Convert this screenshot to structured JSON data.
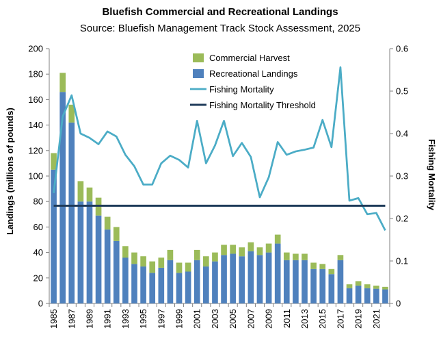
{
  "chart_data": {
    "type": "bar",
    "title": "Bluefish Commercial and Recreational Landings",
    "subtitle": "Source: Bluefish Management Track Stock Assessment, 2025",
    "ylabel": "Landings (millions of pounds)",
    "y2label": "Fishing Mortality",
    "ylim": [
      0,
      200
    ],
    "y2lim": [
      0,
      0.6
    ],
    "yticks": [
      "0",
      "20",
      "40",
      "60",
      "80",
      "100",
      "120",
      "140",
      "160",
      "180",
      "200"
    ],
    "y2ticks": [
      "0",
      "0.1",
      "0.2",
      "0.3",
      "0.4",
      "0.5",
      "0.6"
    ],
    "stacked": true,
    "legend_position": "top-center",
    "grid": false,
    "categories": [
      "1985",
      "1986",
      "1987",
      "1988",
      "1989",
      "1990",
      "1991",
      "1992",
      "1993",
      "1994",
      "1995",
      "1996",
      "1997",
      "1998",
      "1999",
      "2000",
      "2001",
      "2002",
      "2003",
      "2004",
      "2005",
      "2006",
      "2007",
      "2008",
      "2009",
      "2010",
      "2011",
      "2012",
      "2013",
      "2014",
      "2015",
      "2016",
      "2017",
      "2018",
      "2019",
      "2020",
      "2021",
      "2022"
    ],
    "x_tick_labels": [
      "1985",
      "1987",
      "1989",
      "1991",
      "1993",
      "1995",
      "1997",
      "1999",
      "2001",
      "2003",
      "2005",
      "2007",
      "2009",
      "2011",
      "2013",
      "2015",
      "2017",
      "2019",
      "2021"
    ],
    "series": [
      {
        "name": "Recreational Landings",
        "kind": "bar",
        "axis": "left",
        "color": "#4f81bd",
        "values": [
          105,
          166,
          142,
          80,
          80,
          69,
          58,
          49,
          36,
          31,
          29,
          24,
          28,
          34,
          24,
          25,
          34,
          29,
          33,
          38,
          39,
          37,
          41,
          38,
          40,
          47,
          34,
          34,
          34,
          27,
          27,
          23,
          34,
          12,
          14,
          12,
          11.5,
          11
        ]
      },
      {
        "name": "Commercial Harvest",
        "kind": "bar",
        "axis": "left",
        "color": "#9bbb59",
        "values": [
          13,
          15,
          14,
          16,
          11,
          14,
          10,
          11,
          9,
          9,
          8,
          9,
          8,
          8,
          8,
          7,
          8,
          8,
          7,
          8,
          7,
          7,
          7,
          6,
          7,
          7,
          6,
          5,
          5,
          5,
          4,
          4,
          4,
          3,
          3.5,
          3,
          2.5,
          2
        ]
      },
      {
        "name": "Fishing Mortality",
        "kind": "line",
        "axis": "right",
        "color": "#4bacc6",
        "values": [
          0.26,
          0.44,
          0.49,
          0.4,
          0.39,
          0.375,
          0.405,
          0.393,
          0.35,
          0.323,
          0.28,
          0.28,
          0.33,
          0.348,
          0.338,
          0.32,
          0.43,
          0.33,
          0.372,
          0.43,
          0.347,
          0.378,
          0.345,
          0.25,
          0.297,
          0.38,
          0.35,
          0.358,
          0.362,
          0.367,
          0.432,
          0.368,
          0.556,
          0.242,
          0.248,
          0.21,
          0.213,
          0.172
        ]
      },
      {
        "name": "Fishing Mortality Threshold",
        "kind": "line",
        "axis": "right",
        "color": "#1f3b5a",
        "values": [
          0.23,
          0.23,
          0.23,
          0.23,
          0.23,
          0.23,
          0.23,
          0.23,
          0.23,
          0.23,
          0.23,
          0.23,
          0.23,
          0.23,
          0.23,
          0.23,
          0.23,
          0.23,
          0.23,
          0.23,
          0.23,
          0.23,
          0.23,
          0.23,
          0.23,
          0.23,
          0.23,
          0.23,
          0.23,
          0.23,
          0.23,
          0.23,
          0.23,
          0.23,
          0.23,
          0.23,
          0.23,
          0.23
        ]
      }
    ],
    "legend_order": [
      "Commercial Harvest",
      "Recreational Landings",
      "Fishing Mortality",
      "Fishing Mortality Threshold"
    ]
  }
}
